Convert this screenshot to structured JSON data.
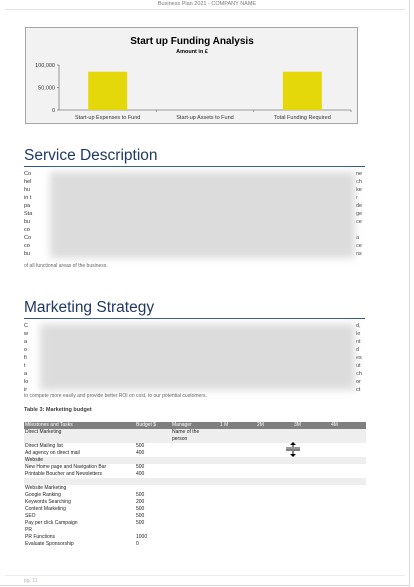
{
  "document": {
    "header_title": "Business Plan 2021 - COMPANY NAME",
    "footer_page": "pg. 11"
  },
  "chart_data": {
    "type": "bar",
    "title": "Start up Funding Analysis",
    "subtitle": "Amount in £",
    "categories": [
      "Start-up Expenses to Fund",
      "Start-up Assets to Fund",
      "Total Funding Required"
    ],
    "values": [
      85000,
      0,
      85000
    ],
    "ylim": [
      0,
      100000
    ],
    "yticks": [
      "0",
      "50,000",
      "100,000"
    ],
    "ytick_values": [
      0,
      50000,
      100000
    ],
    "bar_color": "#e5d80a",
    "grid": false,
    "legend": "none"
  },
  "sections": {
    "service": {
      "heading": "Service Description",
      "left_chars": [
        "Co",
        "hel",
        "hu",
        "in t",
        "pa",
        "Sta",
        "bu",
        "co",
        "Co",
        "co",
        "bu"
      ],
      "right_chars": [
        "ne",
        "ch",
        "ke",
        "r",
        "de",
        "ge",
        "ce",
        "",
        "a",
        "ce",
        "ns"
      ],
      "last_line": "of all functional areas of the business."
    },
    "marketing": {
      "heading": "Marketing Strategy",
      "left_chars": [
        "C",
        "w",
        "a",
        "o",
        "fi",
        "t",
        "a",
        "lo",
        "ir"
      ],
      "right_chars": [
        "d,",
        "le",
        "nt",
        "d",
        "es",
        "ut",
        "ch",
        "or",
        "ct"
      ],
      "last_line": "to compete more easily and provide better ROI on cost, to our potential customers."
    }
  },
  "budget_table": {
    "caption": "Table 3: Marketing budget",
    "columns": [
      "Milestones and Tasks",
      "Budget  $",
      "Manager",
      "1 M",
      "2M",
      "3M",
      "4M"
    ],
    "rows": [
      {
        "task": "Direct Marketing",
        "budget": "",
        "manager": "Name      of      the",
        "shaded": true
      },
      {
        "task": "",
        "budget": "",
        "manager": "person",
        "shaded": true
      },
      {
        "task": "Direct Mailing list",
        "budget": "500",
        "manager": "",
        "shaded": false
      },
      {
        "task": "Ad agency on direct mail",
        "budget": "400",
        "manager": "",
        "shaded": false
      },
      {
        "task": "Website",
        "budget": "",
        "manager": "",
        "shaded": true
      },
      {
        "task": "New Home page and Navigation Bar",
        "budget": "500",
        "manager": "",
        "shaded": false
      },
      {
        "task": "Printable Boucher and Newsletters",
        "budget": "400",
        "manager": "",
        "shaded": false
      },
      {
        "task": "",
        "budget": "",
        "manager": "",
        "shaded": true
      },
      {
        "task": "Website Marketing",
        "budget": "",
        "manager": "",
        "shaded": false
      },
      {
        "task": "Google Ranking",
        "budget": "500",
        "manager": "",
        "shaded": false
      },
      {
        "task": "Keywords Searching",
        "budget": "200",
        "manager": "",
        "shaded": false
      },
      {
        "task": "Content Marketing",
        "budget": "500",
        "manager": "",
        "shaded": false
      },
      {
        "task": "SEO",
        "budget": "500",
        "manager": "",
        "shaded": false
      },
      {
        "task": "Pay per click Campaign",
        "budget": "500",
        "manager": "",
        "shaded": false
      },
      {
        "task": "PR",
        "budget": "",
        "manager": "",
        "shaded": false
      },
      {
        "task": "PR Functions",
        "budget": "1000",
        "manager": "",
        "shaded": false
      },
      {
        "task": "Evaluate Sponsorship",
        "budget": "0",
        "manager": "",
        "shaded": false
      }
    ]
  },
  "icons": {
    "cursor": "resize-row-cursor-icon"
  }
}
